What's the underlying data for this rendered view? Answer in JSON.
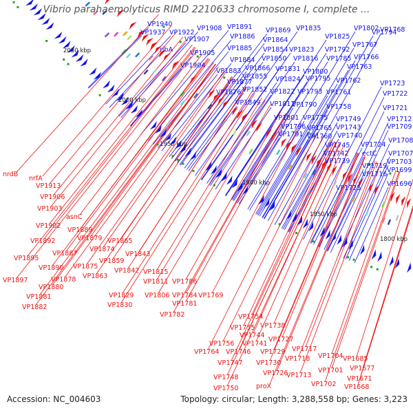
{
  "title": "Vibrio parahaemolyticus RIMD 2210633 chromosome I, complete ...",
  "footer": {
    "accession": "Accession: NC_004603",
    "summary": "Topology: circular; Length: 3,288,558 bp; Genes: 3,223"
  },
  "colors": {
    "forward": "#1010ee",
    "reverse": "#ee1010",
    "backbone": "#888888"
  },
  "kbp_marks": [
    "2050 kbp",
    "2000 kbp",
    "1950 kbp",
    "1900 kbp",
    "1850 kbp",
    "1800 kbp"
  ],
  "forward_labels": [
    "VP1940",
    "VP1937",
    "VP1922",
    "VP1908",
    "VP1891",
    "VP1869",
    "VP1835",
    "VP1825",
    "VP1802",
    "VP1794",
    "VP1768",
    "VP1907",
    "VP1886",
    "VP1864",
    "VP1823",
    "VP1792",
    "VP1767",
    "ribA",
    "VP1905",
    "VP1885",
    "VP1854",
    "VP1816",
    "VP1785",
    "VP1766",
    "VP1904",
    "VP1884",
    "VP1850",
    "VP1763",
    "VP1883",
    "VP1866",
    "VP1831",
    "VP1800",
    "VP1855",
    "VP1824",
    "VP1795",
    "VP1762",
    "VP1877",
    "VP1723",
    "VP1876",
    "VP1852",
    "VP1822",
    "VP1793",
    "VP1761",
    "VP1722",
    "VP1849",
    "VP1817",
    "VP1790",
    "VP1758",
    "VP1721",
    "VP1801",
    "VP1775",
    "VP1749",
    "VP1712",
    "VP1796",
    "VP1765",
    "VP1743",
    "VP1709",
    "VP1791",
    "VP1760",
    "VP1740",
    "VP1708",
    "VP1745",
    "VP1724",
    "VP1742",
    "ectC",
    "VP1707",
    "VP1739",
    "VP1719",
    "VP1703",
    "VP1716",
    "VP1699",
    "VP1725",
    "VP1696"
  ],
  "reverse_labels": [
    "nrdB",
    "nrfA",
    "VP1913",
    "VP1906",
    "VP1903",
    "asnC",
    "VP1902",
    "VP1889",
    "VP1892",
    "VP1879",
    "VP1865",
    "VP1887",
    "VP1874",
    "VP1895",
    "VP1890",
    "VP1875",
    "VP1859",
    "VP1843",
    "VP1897",
    "VP1878",
    "VP1863",
    "VP1842",
    "VP1815",
    "VP1880",
    "VP1811",
    "VP1786",
    "VP1881",
    "VP1829",
    "VP1806",
    "VP1784",
    "VP1769",
    "VP1882",
    "VP1830",
    "VP1781",
    "VP1782",
    "VP1754",
    "VP1755",
    "VP1738",
    "VP1744",
    "VP1741",
    "VP1727",
    "VP1756",
    "VP1764",
    "VP1746",
    "VP1729",
    "VP1717",
    "VP1747",
    "VP1730",
    "VP1718",
    "VP1704",
    "VP1685",
    "VP1748",
    "VP1726",
    "VP1713",
    "VP1701",
    "VP1677",
    "VP1750",
    "proX",
    "VP1702",
    "VP1671",
    "VP1668"
  ]
}
